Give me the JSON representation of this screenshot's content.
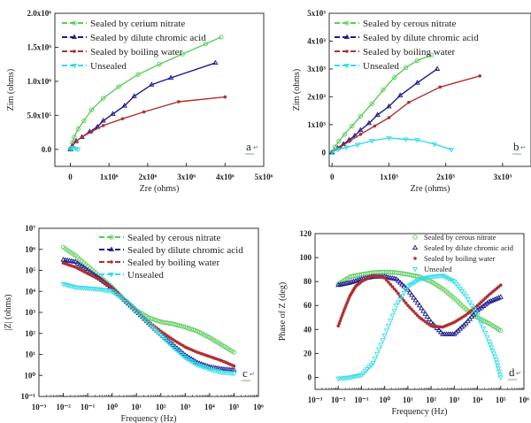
{
  "colors": {
    "green": "#5ccc5c",
    "navy": "#1a1a8c",
    "red": "#b03030",
    "cyan": "#33dde8",
    "axis": "#333333"
  },
  "chart_data": [
    {
      "id": "a",
      "type": "line",
      "panel_label": "a",
      "xlabel": "Zre (ohms)",
      "ylabel": "Zim (ohms)",
      "xlim": [
        -0.4,
        5
      ],
      "ylim": [
        -0.25,
        2.0
      ],
      "x_ticks": [
        0,
        1,
        2,
        3,
        4,
        5
      ],
      "x_tick_labels": [
        "0",
        "1x10⁶",
        "2x10⁶",
        "3x10⁶",
        "4x10⁶",
        "5x10⁶"
      ],
      "y_ticks": [
        0,
        0.5,
        1.0,
        1.5,
        2.0
      ],
      "y_tick_labels": [
        "0.0",
        "5.0x10⁵",
        "1.0x10⁶",
        "1.5x10⁶",
        "2.0x10⁶"
      ],
      "units_note": "values in 10^6 ohms",
      "legend_position": "top-left",
      "series": [
        {
          "name": "Sealed by cerium nitrate",
          "color_key": "green",
          "marker": "circle",
          "x": [
            0,
            0.05,
            0.1,
            0.2,
            0.35,
            0.55,
            0.85,
            1.25,
            1.75,
            2.3,
            2.9,
            3.5,
            3.9
          ],
          "y": [
            0,
            0.1,
            0.18,
            0.3,
            0.42,
            0.58,
            0.75,
            0.92,
            1.1,
            1.25,
            1.4,
            1.55,
            1.65
          ]
        },
        {
          "name": "Sealed by dilute chromic acid",
          "color_key": "navy",
          "marker": "triangle",
          "x": [
            0,
            0.05,
            0.15,
            0.3,
            0.5,
            0.7,
            0.85,
            1.1,
            1.4,
            1.65,
            2.1,
            2.6,
            3.75
          ],
          "y": [
            0,
            0.05,
            0.12,
            0.18,
            0.26,
            0.33,
            0.42,
            0.52,
            0.64,
            0.78,
            0.95,
            1.05,
            1.27
          ]
        },
        {
          "name": "Sealed by boiling water",
          "color_key": "red",
          "marker": "circle-filled",
          "x": [
            0,
            0.05,
            0.15,
            0.3,
            0.55,
            0.85,
            1.35,
            1.9,
            2.8,
            4.0
          ],
          "y": [
            0,
            0.05,
            0.12,
            0.18,
            0.26,
            0.35,
            0.45,
            0.55,
            0.7,
            0.77
          ]
        },
        {
          "name": "Unsealed",
          "color_key": "cyan",
          "marker": "triangle-down",
          "x": [
            0,
            0.03,
            0.08,
            0.14,
            0.2
          ],
          "y": [
            0,
            0.02,
            0.02,
            0.01,
            0.0
          ]
        }
      ]
    },
    {
      "id": "b",
      "type": "line",
      "panel_label": "b",
      "xlabel": "Zre (ohms)",
      "ylabel": "Zim (ohms)",
      "xlim": [
        -0.05,
        3.5
      ],
      "ylim": [
        -0.5,
        5
      ],
      "x_ticks": [
        0,
        1,
        2,
        3
      ],
      "x_tick_labels": [
        "0",
        "1x10³",
        "2x10³",
        "3x10³"
      ],
      "y_ticks": [
        0,
        1,
        2,
        3,
        4,
        5
      ],
      "y_tick_labels": [
        "0",
        "1x10³",
        "2x10³",
        "3x10³",
        "4x10³",
        "5x10³"
      ],
      "units_note": "values in 10^3 ohms",
      "legend_position": "top-left",
      "series": [
        {
          "name": "Sealed by cerous nitrate",
          "color_key": "green",
          "marker": "circle",
          "x": [
            0,
            0.05,
            0.12,
            0.22,
            0.35,
            0.5,
            0.7,
            0.9,
            1.1,
            1.3,
            1.5,
            1.75
          ],
          "y": [
            0,
            0.2,
            0.4,
            0.65,
            0.95,
            1.3,
            1.75,
            2.25,
            2.7,
            3.05,
            3.3,
            3.5
          ]
        },
        {
          "name": "Sealed by dilute chromic acid",
          "color_key": "navy",
          "marker": "triangle",
          "x": [
            0,
            0.1,
            0.2,
            0.3,
            0.4,
            0.5,
            0.65,
            0.8,
            1.0,
            1.2,
            1.5,
            1.85
          ],
          "y": [
            0,
            0.15,
            0.3,
            0.45,
            0.6,
            0.8,
            1.05,
            1.35,
            1.65,
            2.05,
            2.5,
            3.0
          ]
        },
        {
          "name": "Sealed by boiling water",
          "color_key": "red",
          "marker": "circle-filled",
          "x": [
            0,
            0.15,
            0.3,
            0.5,
            0.75,
            1.0,
            1.35,
            1.9,
            2.6
          ],
          "y": [
            0,
            0.2,
            0.4,
            0.65,
            0.95,
            1.25,
            1.8,
            2.35,
            2.75
          ]
        },
        {
          "name": "Unsealed",
          "color_key": "cyan",
          "marker": "triangle-down",
          "x": [
            0,
            0.1,
            0.25,
            0.45,
            0.7,
            1.0,
            1.3,
            1.5,
            1.8,
            2.1
          ],
          "y": [
            0,
            0.1,
            0.18,
            0.28,
            0.42,
            0.52,
            0.47,
            0.45,
            0.3,
            0.1
          ]
        }
      ]
    },
    {
      "id": "c",
      "type": "scatter",
      "panel_label": "c",
      "xlabel": "Frequency (Hz)",
      "ylabel": "|Z| (ohms)",
      "xscale": "log",
      "yscale": "log",
      "xlim_exp": [
        -3,
        6
      ],
      "ylim_exp": [
        -1,
        7
      ],
      "x_tick_labels": [
        "10⁻³",
        "10⁻²",
        "10⁻¹",
        "10⁰",
        "10¹",
        "10²",
        "10³",
        "10⁴",
        "10⁵",
        "10⁶"
      ],
      "y_tick_labels": [
        "10⁻¹",
        "10⁰",
        "10¹",
        "10²",
        "10³",
        "10⁴",
        "10⁵",
        "10⁶",
        "10⁷"
      ],
      "legend_position": "top-right",
      "series": [
        {
          "name": "Sealed by cerous nitrate",
          "color_key": "green",
          "marker": "circle",
          "log_x": [
            -2,
            -1.5,
            -1,
            -0.5,
            0,
            0.5,
            1,
            1.5,
            2,
            2.5,
            3,
            3.5,
            4,
            4.5,
            5
          ],
          "log_y": [
            6.1,
            5.7,
            5.2,
            4.7,
            4.2,
            3.6,
            3.1,
            2.75,
            2.55,
            2.45,
            2.3,
            2.1,
            1.8,
            1.45,
            1.1
          ]
        },
        {
          "name": "Sealed by dilute chromic acid",
          "color_key": "navy",
          "marker": "triangle",
          "log_x": [
            -2,
            -1.5,
            -1,
            -0.5,
            0,
            0.5,
            1,
            1.5,
            2,
            2.5,
            3,
            3.5,
            4,
            4.5,
            5
          ],
          "log_y": [
            5.5,
            5.4,
            5.0,
            4.6,
            4.15,
            3.6,
            3.05,
            2.5,
            1.95,
            1.45,
            0.95,
            0.6,
            0.4,
            0.3,
            0.25
          ]
        },
        {
          "name": "Sealed by boiling water",
          "color_key": "red",
          "marker": "circle-filled",
          "log_x": [
            -2,
            -1.5,
            -1,
            -0.5,
            0,
            0.5,
            1,
            1.5,
            2,
            2.5,
            3,
            3.5,
            4,
            4.5,
            5
          ],
          "log_y": [
            5.35,
            5.15,
            4.85,
            4.55,
            4.15,
            3.6,
            3.05,
            2.55,
            2.1,
            1.7,
            1.35,
            1.1,
            0.9,
            0.7,
            0.45
          ]
        },
        {
          "name": "Unsealed",
          "color_key": "cyan",
          "marker": "triangle-down",
          "log_x": [
            -2,
            -1.5,
            -1,
            -0.5,
            0,
            0.5,
            1,
            1.5,
            2,
            2.5,
            3,
            3.5,
            4,
            4.5,
            5
          ],
          "log_y": [
            4.35,
            4.2,
            4.15,
            4.1,
            4.0,
            3.6,
            3.05,
            2.5,
            1.9,
            1.35,
            0.85,
            0.5,
            0.3,
            0.15,
            0.1
          ]
        }
      ]
    },
    {
      "id": "d",
      "type": "scatter",
      "panel_label": "d",
      "xlabel": "Frequency (Hz)",
      "ylabel": "Phase of Z (deg)",
      "xscale": "log",
      "xlim_exp": [
        -3,
        6
      ],
      "ylim": [
        -10,
        120
      ],
      "x_tick_labels": [
        "10⁻³",
        "10⁻²",
        "10⁻¹",
        "10⁰",
        "10¹",
        "10²",
        "10³",
        "10⁴",
        "10⁵",
        "10⁶"
      ],
      "y_ticks": [
        0,
        20,
        40,
        60,
        80,
        100,
        120
      ],
      "legend_position": "top-right",
      "series": [
        {
          "name": "Sealed by cerous nitrate",
          "color_key": "green",
          "marker": "circle",
          "log_x": [
            -2,
            -1.5,
            -1,
            -0.5,
            0,
            0.5,
            1,
            1.5,
            2,
            2.5,
            3,
            3.5,
            4,
            4.5,
            5
          ],
          "y": [
            78,
            84,
            86,
            87.5,
            88,
            87.5,
            86,
            84,
            80,
            74,
            66,
            57,
            50,
            45,
            39
          ]
        },
        {
          "name": "Sealed by dilute chromic acid",
          "color_key": "navy",
          "marker": "triangle",
          "log_x": [
            -2,
            -1.5,
            -1,
            -0.5,
            0,
            0.5,
            1,
            1.5,
            2,
            2.5,
            3,
            3.5,
            4,
            4.5,
            5
          ],
          "y": [
            77,
            79,
            82,
            84,
            84,
            82,
            73,
            60,
            46,
            36,
            36,
            45,
            56,
            63,
            67
          ]
        },
        {
          "name": "Sealed by boiling water",
          "color_key": "red",
          "marker": "circle-filled",
          "log_x": [
            -2,
            -1.75,
            -1.5,
            -1.25,
            -1,
            -0.5,
            0,
            0.5,
            1,
            1.5,
            2,
            2.5,
            3,
            3.5,
            4,
            4.5,
            5
          ],
          "y": [
            43,
            56,
            68,
            76,
            80,
            85,
            83,
            72,
            60,
            50,
            43,
            42,
            46,
            52,
            60,
            69,
            77
          ]
        },
        {
          "name": "Unsealed",
          "color_key": "cyan",
          "marker": "triangle-down",
          "log_x": [
            -2,
            -1.5,
            -1,
            -0.5,
            0,
            0.5,
            1,
            1.5,
            2,
            2.5,
            3,
            3.5,
            4,
            4.5,
            4.8,
            5
          ],
          "y": [
            -1,
            0,
            2,
            12,
            35,
            60,
            76,
            82,
            84,
            85,
            80,
            68,
            52,
            30,
            15,
            0
          ]
        }
      ]
    }
  ]
}
